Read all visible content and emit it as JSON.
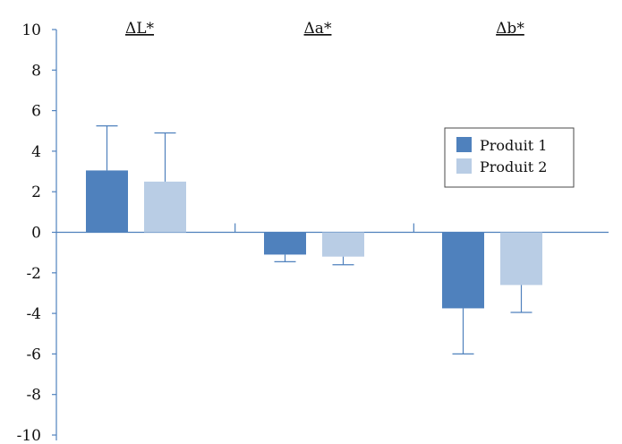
{
  "chart_data": {
    "type": "bar",
    "title": "",
    "xlabel": "",
    "ylabel": "",
    "categories": [
      "ΔL*",
      "Δa*",
      "Δb*"
    ],
    "series": [
      {
        "name": "Produit 1",
        "color": "#4f81bd",
        "values": [
          3.05,
          -1.1,
          -3.75
        ],
        "error": [
          2.2,
          0.35,
          2.25
        ]
      },
      {
        "name": "Produit 2",
        "color": "#b9cde5",
        "values": [
          2.5,
          -1.2,
          -2.6
        ],
        "error": [
          2.4,
          0.4,
          1.35
        ]
      }
    ],
    "ylim": [
      -10,
      10
    ],
    "yticks": [
      10,
      8,
      6,
      4,
      2,
      0,
      -2,
      -4,
      -6,
      -8,
      -10
    ],
    "error_bar_color": "#4f81bd",
    "axis_color": "#4f81bd",
    "grid": false,
    "legend_position": "right",
    "category_label_position": "top"
  }
}
